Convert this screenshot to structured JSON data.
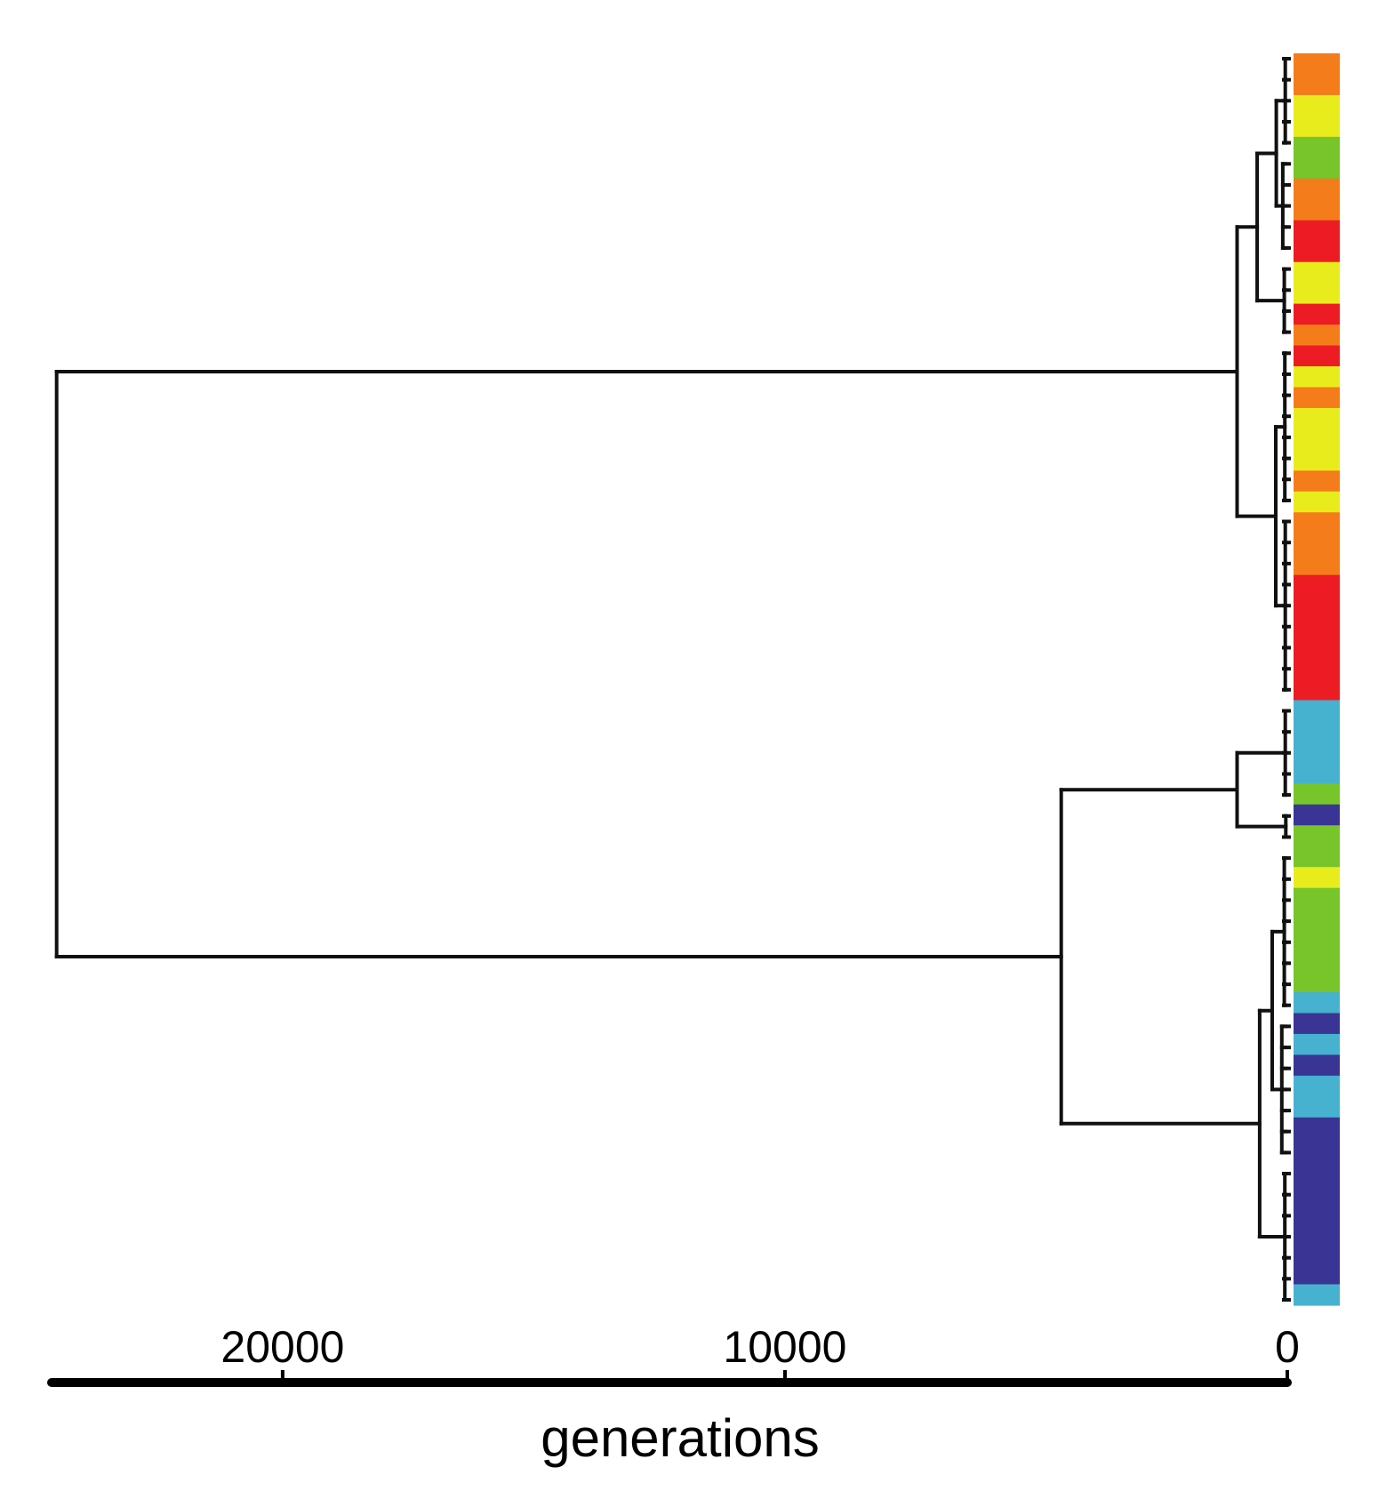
{
  "chart_data": {
    "type": "dendrogram",
    "xlabel": "generations",
    "x_axis": {
      "ticks": [
        20000,
        10000,
        0
      ],
      "tick_labels": [
        "20000",
        "10000",
        "0"
      ],
      "range": [
        24600,
        0
      ]
    },
    "tree": {
      "root_age": 24500,
      "clades": [
        {
          "name": "",
          "age": 1000,
          "subclade_ages": [
            600,
            230
          ]
        },
        {
          "name": "",
          "age": 4500,
          "subclade_ages": [
            1000,
            550
          ]
        }
      ]
    },
    "strip_colors": {
      "orange": "#f57c1a",
      "yellow": "#e8ec1c",
      "green": "#77c52a",
      "red": "#ed1c24",
      "cyan": "#47b1d0",
      "navy": "#3a3594"
    },
    "strip_segments": [
      {
        "color": "orange",
        "units": 2
      },
      {
        "color": "yellow",
        "units": 2
      },
      {
        "color": "green",
        "units": 2
      },
      {
        "color": "orange",
        "units": 2
      },
      {
        "color": "red",
        "units": 2
      },
      {
        "color": "yellow",
        "units": 2
      },
      {
        "color": "red",
        "units": 1
      },
      {
        "color": "orange",
        "units": 1
      },
      {
        "color": "red",
        "units": 1
      },
      {
        "color": "yellow",
        "units": 1
      },
      {
        "color": "orange",
        "units": 1
      },
      {
        "color": "yellow",
        "units": 3
      },
      {
        "color": "orange",
        "units": 1
      },
      {
        "color": "yellow",
        "units": 1
      },
      {
        "color": "orange",
        "units": 3
      },
      {
        "color": "red",
        "units": 6
      },
      {
        "color": "cyan",
        "units": 4
      },
      {
        "color": "green",
        "units": 1
      },
      {
        "color": "navy",
        "units": 1
      },
      {
        "color": "green",
        "units": 2
      },
      {
        "color": "yellow",
        "units": 1
      },
      {
        "color": "green",
        "units": 5
      },
      {
        "color": "cyan",
        "units": 1
      },
      {
        "color": "navy",
        "units": 1
      },
      {
        "color": "cyan",
        "units": 1
      },
      {
        "color": "navy",
        "units": 1
      },
      {
        "color": "cyan",
        "units": 2
      },
      {
        "color": "navy",
        "units": 8
      },
      {
        "color": "cyan",
        "units": 1
      }
    ]
  }
}
